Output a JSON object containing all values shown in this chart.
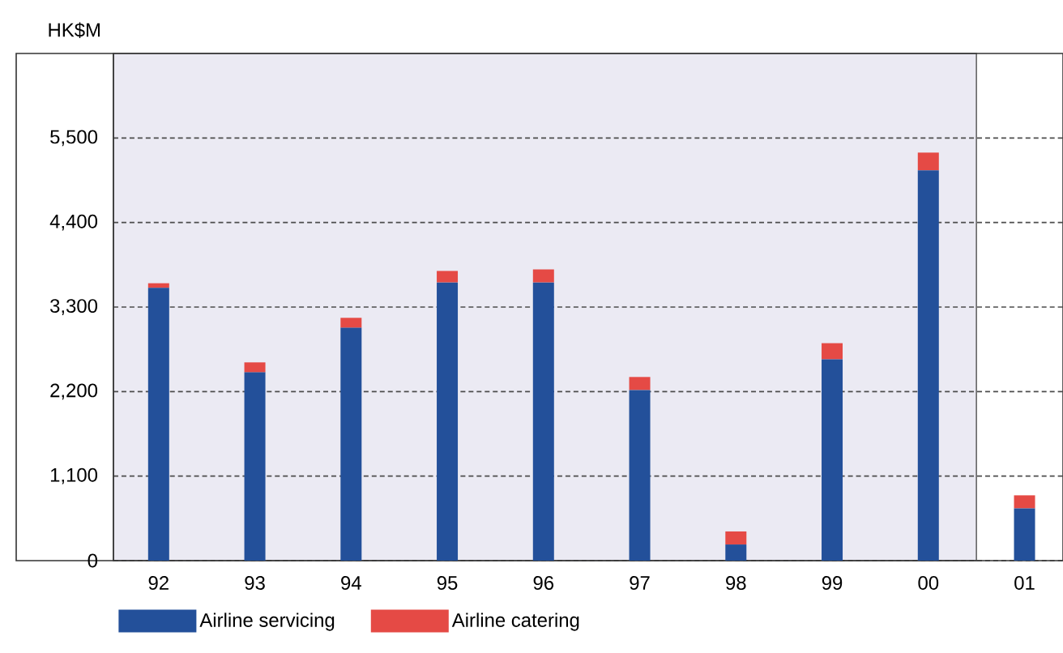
{
  "chart_data": {
    "type": "bar",
    "stacked": true,
    "ylabel": "HK$M",
    "categories": [
      "92",
      "93",
      "94",
      "95",
      "96",
      "97",
      "98",
      "99",
      "00",
      "01"
    ],
    "series": [
      {
        "name": "Airline servicing",
        "color": "#23509a",
        "values": [
          3550,
          2450,
          3030,
          3620,
          3620,
          2220,
          210,
          2620,
          5080,
          680
        ]
      },
      {
        "name": "Airline catering",
        "color": "#e54a45",
        "values": [
          60,
          130,
          130,
          150,
          170,
          170,
          170,
          210,
          230,
          170
        ]
      }
    ],
    "ylim": [
      0,
      6600
    ],
    "yticks": [
      0,
      {
        "value": 1100,
        "label": "1,100"
      },
      {
        "value": 2200,
        "label": "2,200"
      },
      {
        "value": 3300,
        "label": "3,300"
      },
      {
        "value": 4400,
        "label": "4,400"
      },
      {
        "value": 5500,
        "label": "5,500"
      }
    ],
    "grid": "y",
    "legend": "bottom left",
    "bands": [
      {
        "axis": "x",
        "from": "92",
        "to": "00",
        "color": "#ebeaf3"
      }
    ]
  }
}
